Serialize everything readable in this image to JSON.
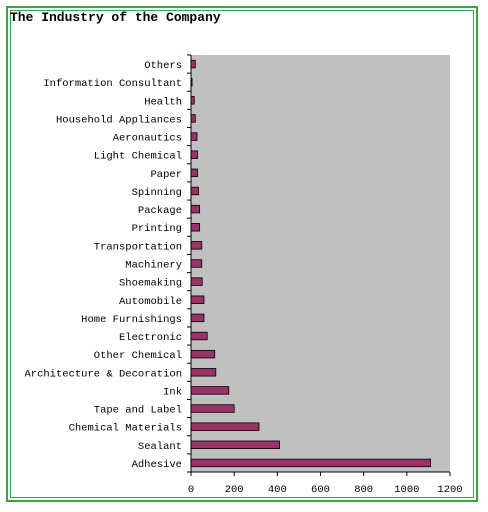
{
  "chart_data": {
    "type": "bar",
    "orientation": "horizontal",
    "title": "The Industry of the Company",
    "categories": [
      "Others",
      "Information Consultant",
      "Health",
      "Household Appliances",
      "Aeronautics",
      "Light Chemical",
      "Paper",
      "Spinning",
      "Package",
      "Printing",
      "Transportation",
      "Machinery",
      "Shoemaking",
      "Automobile",
      "Home Furnishings",
      "Electronic",
      "Other Chemical",
      "Architecture & Decoration",
      "Ink",
      "Tape and Label",
      "Chemical Materials",
      "Sealant",
      "Adhesive"
    ],
    "values": [
      20,
      5,
      15,
      20,
      28,
      30,
      30,
      35,
      40,
      40,
      50,
      50,
      52,
      60,
      60,
      75,
      110,
      115,
      175,
      200,
      315,
      410,
      1110
    ],
    "xlim": [
      0,
      1200
    ],
    "xticks": [
      "0",
      "200",
      "400",
      "600",
      "800",
      "1000",
      "1200"
    ],
    "xlabel": "",
    "ylabel": "",
    "grid": false,
    "legend": "none",
    "plot_background": "#c0c0c0",
    "bar_color": "#993366",
    "frame_color": "#3aa640"
  }
}
